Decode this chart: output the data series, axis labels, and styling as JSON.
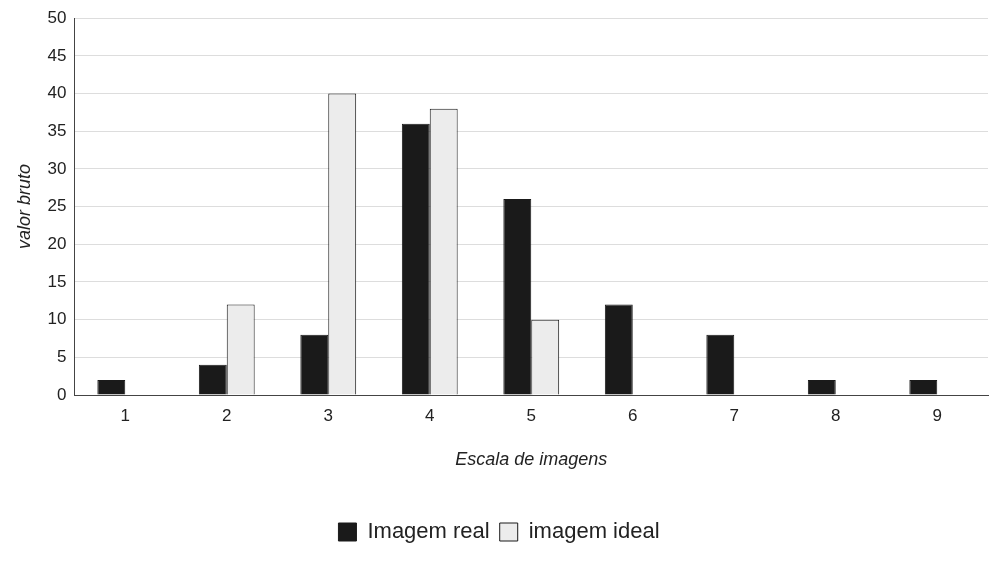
{
  "chart_data": {
    "type": "bar",
    "xlabel": "Escala de imagens",
    "ylabel": "valor bruto",
    "categories": [
      "1",
      "2",
      "3",
      "4",
      "5",
      "6",
      "7",
      "8",
      "9"
    ],
    "series": [
      {
        "name": "Imagem real",
        "color": "#1a1a1a",
        "values": [
          2,
          4,
          8,
          36,
          26,
          12,
          8,
          2,
          2
        ]
      },
      {
        "name": "imagem ideal",
        "color": "#ececec",
        "values": [
          null,
          12,
          40,
          38,
          10,
          null,
          null,
          null,
          null
        ]
      }
    ],
    "ylim": [
      0,
      50
    ],
    "yticks": [
      0,
      5,
      10,
      15,
      20,
      25,
      30,
      35,
      40,
      45,
      50
    ],
    "grid": "y",
    "legend": "bottom"
  }
}
